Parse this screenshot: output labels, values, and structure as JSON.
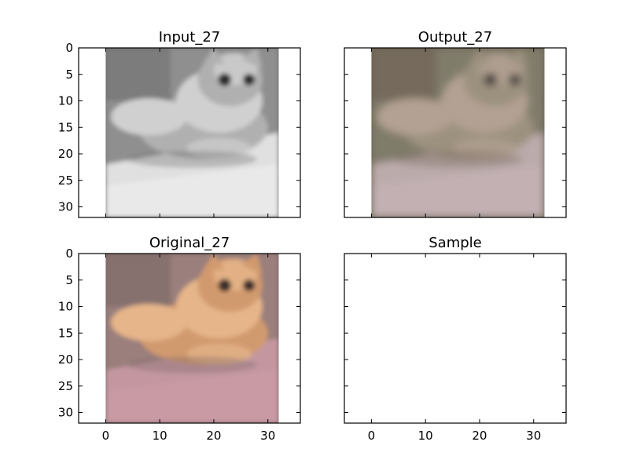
{
  "chart_data": [
    {
      "type": "image",
      "title": "Input_27",
      "colormap": "grayscale",
      "image_description": "fluffy cat lying on a surface",
      "xlim": [
        -5,
        36
      ],
      "ylim": [
        32,
        0
      ],
      "image_extent": [
        0,
        32,
        32,
        0
      ],
      "xticks": [
        0,
        10,
        20,
        30
      ],
      "yticks": [
        0,
        5,
        10,
        15,
        20,
        25,
        30
      ],
      "show_xtick_labels": false,
      "show_ytick_labels": true,
      "palette": [
        "#6e6e6e",
        "#8f8f8f",
        "#b0b0b0",
        "#d0d0d0",
        "#e9e9e9",
        "#2a2a2a"
      ]
    },
    {
      "type": "image",
      "title": "Output_27",
      "colormap": "color",
      "image_description": "blurry colorized cat",
      "xlim": [
        -5,
        36
      ],
      "ylim": [
        32,
        0
      ],
      "image_extent": [
        0,
        32,
        32,
        0
      ],
      "xticks": [
        0,
        10,
        20,
        30
      ],
      "yticks": [
        0,
        5,
        10,
        15,
        20,
        25,
        30
      ],
      "show_xtick_labels": false,
      "show_ytick_labels": false,
      "palette": [
        "#6c6152",
        "#807c6a",
        "#9c917f",
        "#b3a193",
        "#c2b0b3",
        "#3d3a38"
      ]
    },
    {
      "type": "image",
      "title": "Original_27",
      "colormap": "color",
      "image_description": "orange fluffy cat on mauve surface",
      "xlim": [
        -5,
        36
      ],
      "ylim": [
        32,
        0
      ],
      "image_extent": [
        0,
        32,
        32,
        0
      ],
      "xticks": [
        0,
        10,
        20,
        30
      ],
      "yticks": [
        0,
        5,
        10,
        15,
        20,
        25,
        30
      ],
      "show_xtick_labels": true,
      "show_ytick_labels": true,
      "palette": [
        "#7a6766",
        "#9a7f7c",
        "#d19a6e",
        "#e6b58a",
        "#c99aa4",
        "#3a2d2a"
      ]
    },
    {
      "type": "empty",
      "title": "Sample",
      "xlim": [
        -5,
        36
      ],
      "ylim": [
        32,
        0
      ],
      "xticks": [
        0,
        10,
        20,
        30
      ],
      "yticks": [
        0,
        5,
        10,
        15,
        20,
        25,
        30
      ],
      "show_xtick_labels": true,
      "show_ytick_labels": false
    }
  ]
}
